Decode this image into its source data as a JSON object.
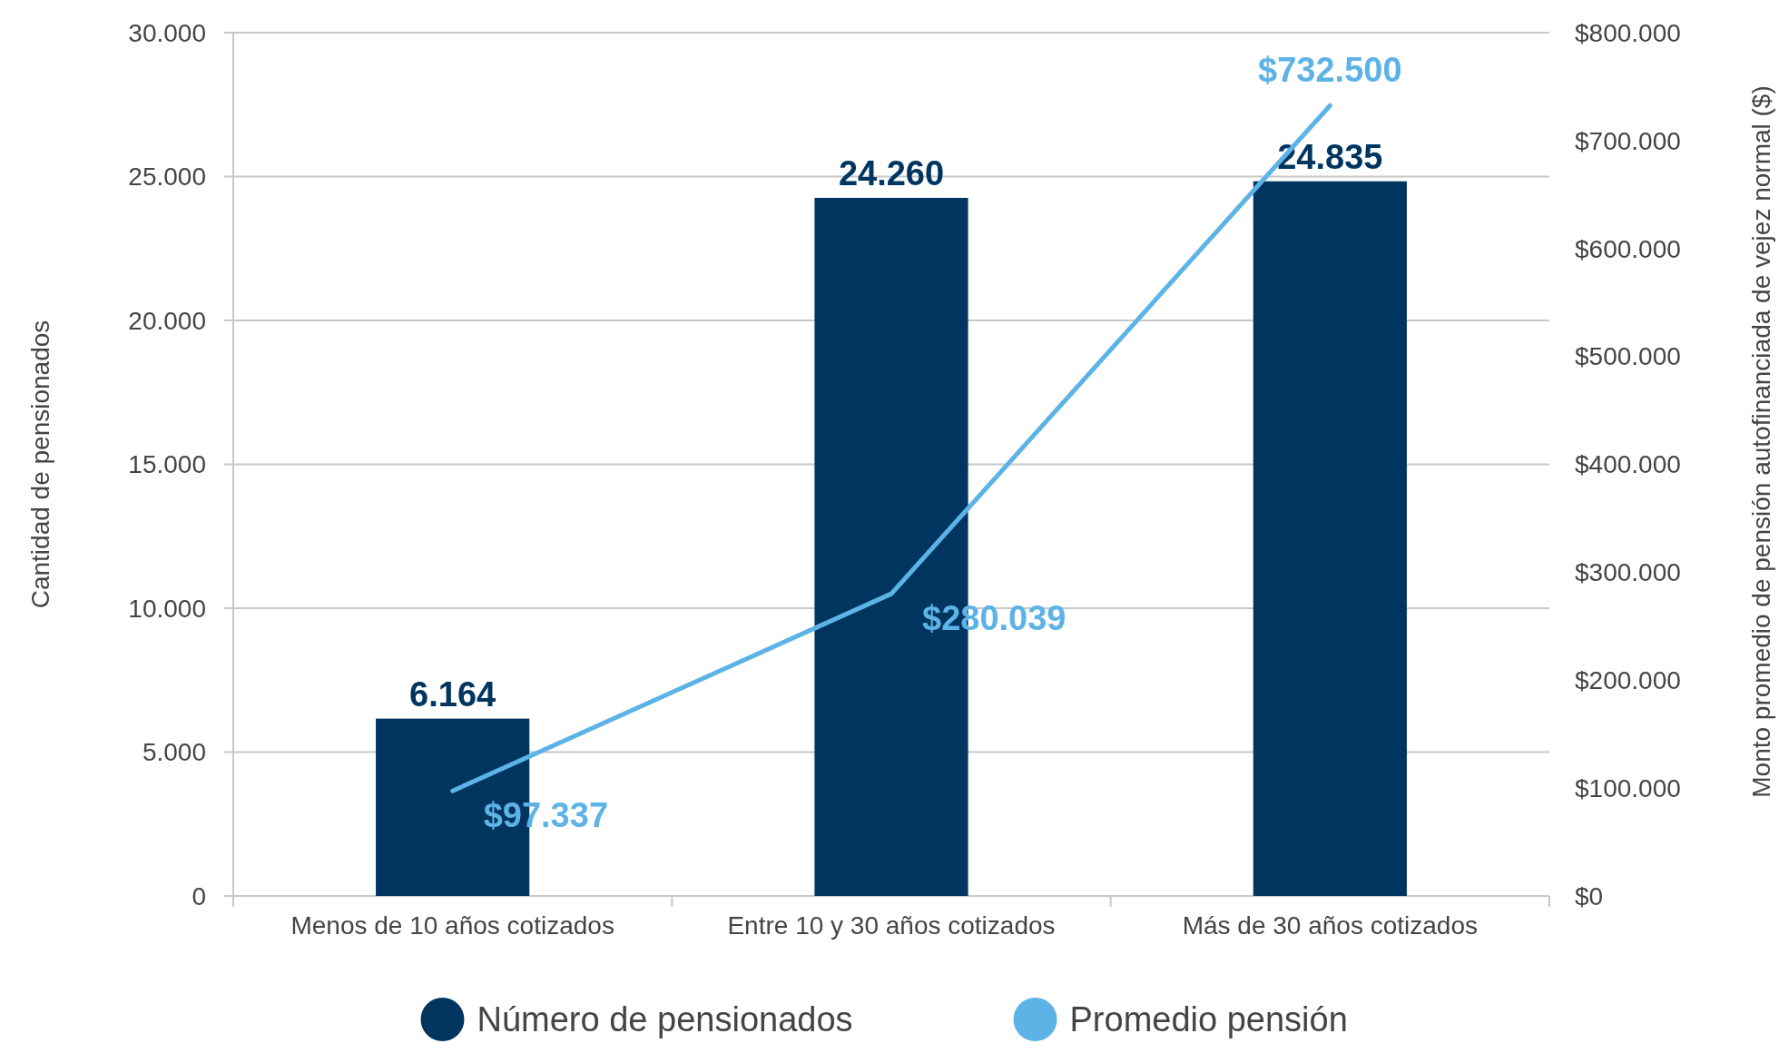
{
  "chart_data": {
    "type": "bar",
    "ylabel": "Cantidad de pensionados",
    "y2label": "Monto promedio de pensión autofinanciada de vejez normal ($)",
    "categories": [
      "Menos de 10 años cotizados",
      "Entre 10 y 30 años cotizados",
      "Más de 30 años cotizados"
    ],
    "series": [
      {
        "name": "Número de pensionados",
        "color": "#003560",
        "values": [
          6164,
          24260,
          24835
        ],
        "value_labels": [
          "6.164",
          "24.260",
          "24.835"
        ]
      },
      {
        "name": "Promedio pensión",
        "type": "line",
        "axis": "y2",
        "color": "#5db3e6",
        "values": [
          97337,
          280039,
          732500
        ],
        "value_labels": [
          "$97.337",
          "$280.039",
          "$732.500"
        ]
      }
    ],
    "ylim": [
      0,
      30000
    ],
    "yticks": [
      {
        "value": 0,
        "label": "0"
      },
      {
        "value": 5000,
        "label": "5.000"
      },
      {
        "value": 10000,
        "label": "10.000"
      },
      {
        "value": 15000,
        "label": "15.000"
      },
      {
        "value": 20000,
        "label": "20.000"
      },
      {
        "value": 25000,
        "label": "25.000"
      },
      {
        "value": 30000,
        "label": "30.000"
      }
    ],
    "y2lim": [
      0,
      800000
    ],
    "y2ticks": [
      {
        "value": 0,
        "label": "$0"
      },
      {
        "value": 100000,
        "label": "$100.000"
      },
      {
        "value": 200000,
        "label": "$200.000"
      },
      {
        "value": 300000,
        "label": "$300.000"
      },
      {
        "value": 400000,
        "label": "$400.000"
      },
      {
        "value": 500000,
        "label": "$500.000"
      },
      {
        "value": 600000,
        "label": "$600.000"
      },
      {
        "value": 700000,
        "label": "$700.000"
      },
      {
        "value": 800000,
        "label": "$800.000"
      }
    ],
    "grid": "y",
    "legend": "bottom",
    "marker": "none",
    "line_style": "solid"
  }
}
